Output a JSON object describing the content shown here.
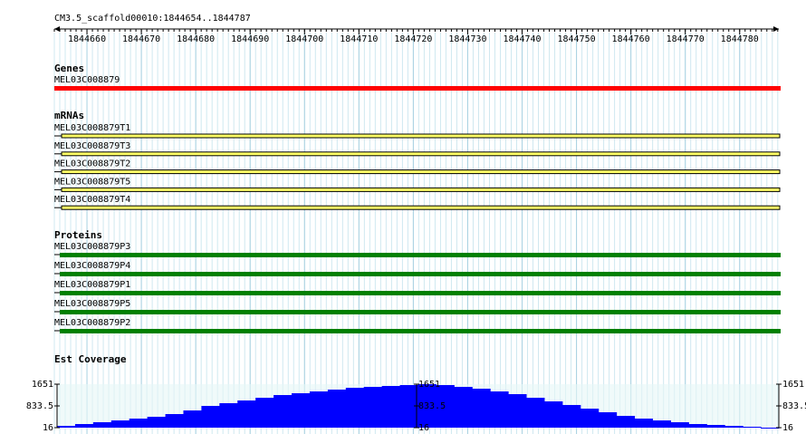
{
  "ruler": {
    "title": "CM3.5_scaffold00010:1844654..1844787",
    "start": 1844654,
    "end": 1844787,
    "ticks": [
      1844660,
      1844670,
      1844680,
      1844690,
      1844700,
      1844710,
      1844720,
      1844730,
      1844740,
      1844750,
      1844760,
      1844770,
      1844780
    ]
  },
  "tracks": {
    "genes": {
      "title": "Genes",
      "features": [
        "MEL03C008879"
      ]
    },
    "mrnas": {
      "title": "mRNAs",
      "features": [
        "MEL03C008879T1",
        "MEL03C008879T3",
        "MEL03C008879T2",
        "MEL03C008879T5",
        "MEL03C008879T4"
      ]
    },
    "proteins": {
      "title": "Proteins",
      "features": [
        "MEL03C008879P3",
        "MEL03C008879P4",
        "MEL03C008879P1",
        "MEL03C008879P5",
        "MEL03C008879P2"
      ]
    },
    "coverage": {
      "title": "Est Coverage",
      "ylim": [
        16,
        1651
      ],
      "yticks": [
        16,
        833.5,
        1651
      ],
      "values": [
        84,
        152,
        220,
        288,
        357,
        425,
        527,
        663,
        833,
        936,
        1038,
        1140,
        1242,
        1310,
        1378,
        1447,
        1515,
        1549,
        1583,
        1617,
        1651,
        1617,
        1549,
        1481,
        1378,
        1276,
        1140,
        1004,
        868,
        731,
        595,
        459,
        357,
        288,
        220,
        152,
        118,
        84,
        50,
        16
      ]
    }
  }
}
